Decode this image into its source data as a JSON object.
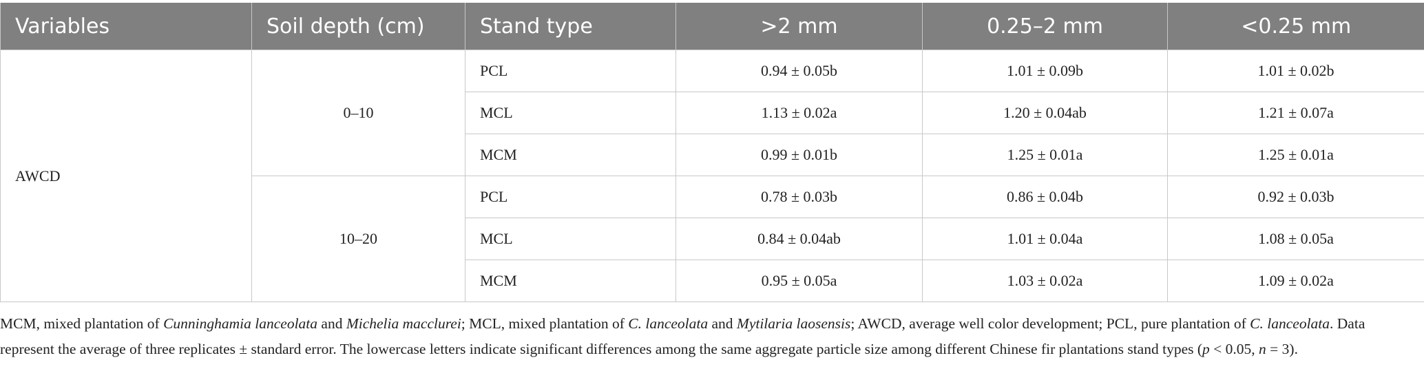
{
  "table": {
    "header": [
      "Variables",
      "Soil depth (cm)",
      "Stand type",
      ">2 mm",
      "0.25–2 mm",
      "<0.25 mm"
    ],
    "variable": "AWCD",
    "groups": [
      {
        "depth": "0–10",
        "rows": [
          {
            "stand": "PCL",
            "values": [
              "0.94 ± 0.05b",
              "1.01 ± 0.09b",
              "1.01 ± 0.02b"
            ]
          },
          {
            "stand": "MCL",
            "values": [
              "1.13 ± 0.02a",
              "1.20 ± 0.04ab",
              "1.21 ± 0.07a"
            ]
          },
          {
            "stand": "MCM",
            "values": [
              "0.99 ± 0.01b",
              "1.25 ± 0.01a",
              "1.25 ± 0.01a"
            ]
          }
        ]
      },
      {
        "depth": "10–20",
        "rows": [
          {
            "stand": "PCL",
            "values": [
              "0.78 ± 0.03b",
              "0.86 ± 0.04b",
              "0.92 ± 0.03b"
            ]
          },
          {
            "stand": "MCL",
            "values": [
              "0.84 ± 0.04ab",
              "1.01 ± 0.04a",
              "1.08 ± 0.05a"
            ]
          },
          {
            "stand": "MCM",
            "values": [
              "0.95 ± 0.05a",
              "1.03 ± 0.02a",
              "1.09 ± 0.02a"
            ]
          }
        ]
      }
    ]
  },
  "footnote": [
    "MCM, mixed plantation of ",
    "Cunninghamia lanceolata",
    " and ",
    "Michelia macclurei",
    "; MCL, mixed plantation of ",
    "C. lanceolata",
    " and ",
    "Mytilaria laosensis",
    "; AWCD, average well color development; PCL, pure plantation of ",
    "C. lanceolata",
    ". Data represent the average of three replicates ± standard error. The lowercase letters indicate significant differences among the same aggregate particle size among different Chinese fir plantations stand types (",
    "p",
    " < 0.05, ",
    "n",
    " = 3)."
  ]
}
